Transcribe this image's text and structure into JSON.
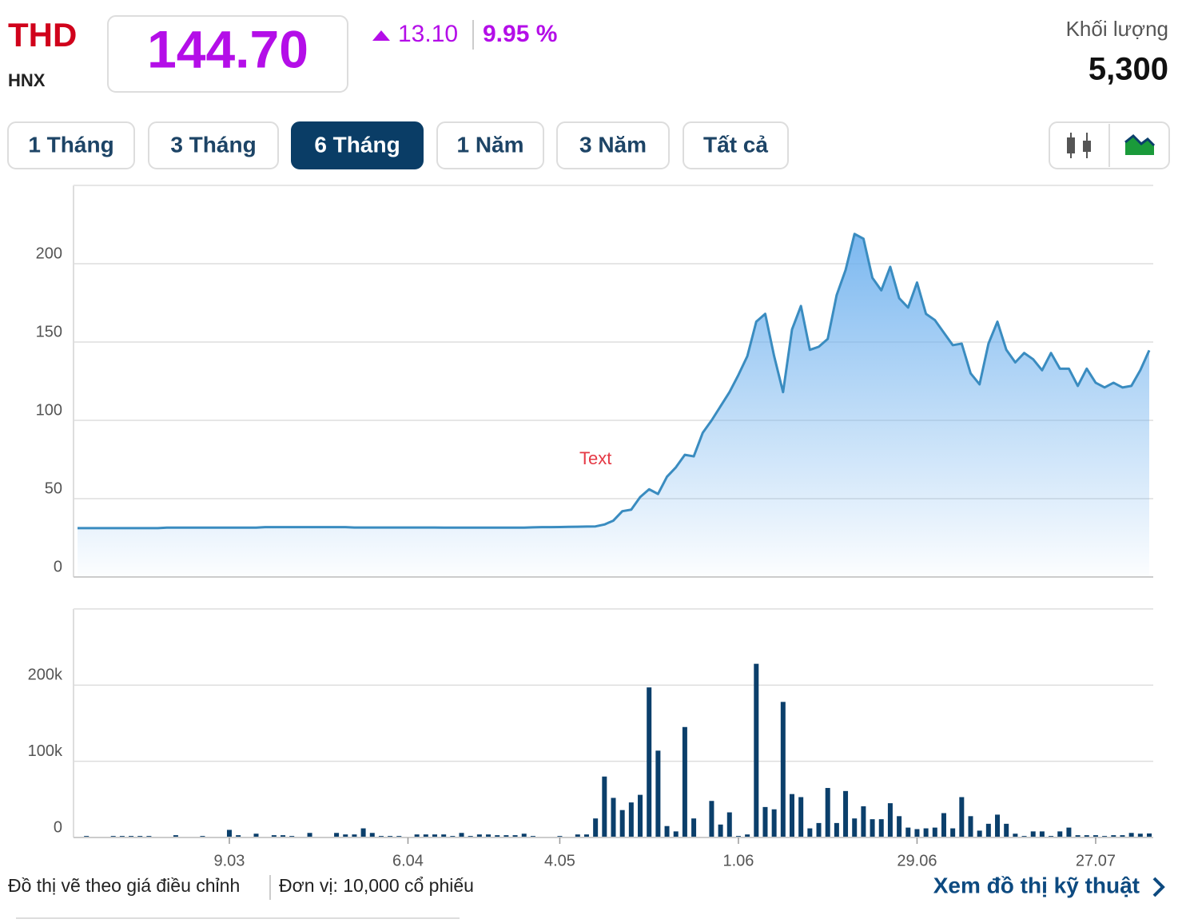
{
  "header": {
    "ticker": "THD",
    "exchange": "HNX",
    "price": "144.70",
    "change": "13.10",
    "change_percent": "9.95 %",
    "volume_label": "Khối lượng",
    "volume": "5,300"
  },
  "tabs": {
    "items": [
      "1 Tháng",
      "3 Tháng",
      "6 Tháng",
      "1 Năm",
      "3 Năm",
      "Tất cả"
    ],
    "active": 2
  },
  "chart_data": [
    {
      "type": "area",
      "color": "#3a8cc0",
      "annotations": [
        {
          "text": "Text",
          "x": 58,
          "y": 75
        }
      ],
      "values": [
        31.2,
        31.2,
        31.2,
        31.2,
        31.2,
        31.2,
        31.2,
        31.2,
        31.2,
        31.2,
        31.5,
        31.5,
        31.5,
        31.5,
        31.5,
        31.5,
        31.5,
        31.5,
        31.5,
        31.5,
        31.5,
        31.8,
        31.8,
        31.8,
        31.8,
        31.8,
        31.8,
        31.8,
        31.8,
        31.8,
        31.8,
        31.6,
        31.6,
        31.6,
        31.6,
        31.6,
        31.6,
        31.6,
        31.6,
        31.6,
        31.6,
        31.5,
        31.5,
        31.5,
        31.5,
        31.5,
        31.5,
        31.5,
        31.5,
        31.5,
        31.5,
        31.7,
        31.8,
        31.8,
        31.9,
        32,
        32.1,
        32.2,
        32.3,
        33.5,
        36,
        42,
        43,
        51,
        56,
        53,
        64,
        70,
        78,
        77,
        92,
        100,
        109,
        118,
        129,
        141,
        163,
        168,
        141,
        118,
        158,
        173,
        145,
        147,
        152,
        180,
        196,
        219,
        216,
        191,
        183,
        198,
        178,
        172,
        188,
        168,
        164,
        156,
        148,
        149,
        130,
        123,
        149,
        163,
        145,
        137,
        143,
        139,
        132,
        143,
        133,
        133,
        122,
        133,
        124,
        121,
        124,
        121,
        122,
        132,
        144.7
      ],
      "ylim": [
        0,
        250
      ],
      "yticks": [
        0,
        50,
        100,
        150,
        200
      ],
      "grid": true
    },
    {
      "type": "bar",
      "color": "#0b3f6b",
      "categories": [
        null,
        null,
        null,
        null,
        null,
        null,
        null,
        null,
        null,
        null,
        null,
        null,
        null,
        null,
        null,
        null,
        null,
        "9.03",
        null,
        null,
        null,
        null,
        null,
        null,
        null,
        null,
        null,
        null,
        null,
        null,
        null,
        null,
        null,
        null,
        null,
        null,
        null,
        "6.04",
        null,
        null,
        null,
        null,
        null,
        null,
        null,
        null,
        null,
        null,
        null,
        null,
        null,
        null,
        null,
        null,
        "4.05",
        null,
        null,
        null,
        null,
        null,
        null,
        null,
        null,
        null,
        null,
        null,
        null,
        null,
        null,
        null,
        null,
        null,
        null,
        null,
        "1.06",
        null,
        null,
        null,
        null,
        null,
        null,
        null,
        null,
        null,
        null,
        null,
        null,
        null,
        null,
        null,
        null,
        null,
        null,
        null,
        "29.06",
        null,
        null,
        null,
        null,
        null,
        null,
        null,
        null,
        null,
        null,
        null,
        null,
        null,
        null,
        null,
        null,
        null,
        null,
        null,
        "27.07",
        null,
        null,
        null,
        null,
        null,
        null
      ],
      "values": [
        0,
        2000,
        0,
        0,
        2000,
        2000,
        2000,
        2000,
        2000,
        0,
        0,
        3000,
        0,
        0,
        2000,
        0,
        0,
        10000,
        3000,
        0,
        5000,
        0,
        3000,
        3000,
        2000,
        0,
        6000,
        0,
        0,
        6000,
        4000,
        4000,
        12000,
        6000,
        2000,
        2000,
        2000,
        0,
        4000,
        4000,
        4000,
        4000,
        2000,
        6000,
        2000,
        4000,
        4000,
        3000,
        3000,
        3000,
        5000,
        2000,
        0,
        0,
        2000,
        0,
        4000,
        4000,
        25000,
        80000,
        52000,
        36000,
        46000,
        56000,
        197000,
        114000,
        15000,
        8000,
        145000,
        25000,
        0,
        48000,
        17000,
        33000,
        2000,
        4000,
        228000,
        40000,
        37000,
        178000,
        57000,
        53000,
        12000,
        19000,
        65000,
        19000,
        61000,
        25000,
        41000,
        24000,
        24000,
        45000,
        28000,
        13000,
        11000,
        12000,
        13000,
        32000,
        12000,
        53000,
        28000,
        9000,
        18000,
        30000,
        18000,
        5000,
        2000,
        8000,
        8000,
        2000,
        8000,
        13000,
        3000,
        3000,
        3000,
        2000,
        3000,
        3000,
        6000,
        5000,
        5300
      ],
      "ylim": [
        0,
        300000
      ],
      "yticks": [
        0,
        {
          "value": 100000,
          "label": "100k"
        },
        {
          "value": 200000,
          "label": "200k"
        }
      ],
      "grid": true
    }
  ],
  "footer": {
    "note": "Đồ thị vẽ theo giá điều chỉnh",
    "unit": "Đơn vị: 10,000 cổ phiếu",
    "link": "Xem đồ thị kỹ thuật"
  }
}
